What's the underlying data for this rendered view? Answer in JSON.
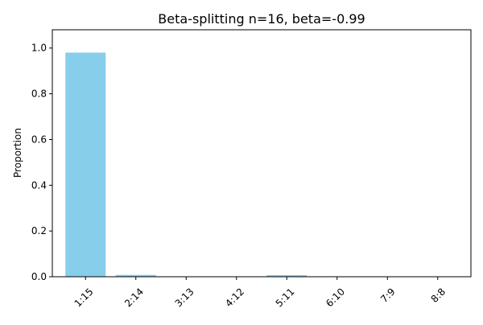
{
  "chart_data": {
    "type": "bar",
    "title": "Beta-splitting n=16, beta=-0.99",
    "xlabel": "",
    "ylabel": "Proportion",
    "categories": [
      "1:15",
      "2:14",
      "3:13",
      "4:12",
      "5:11",
      "6:10",
      "7:9",
      "8:8"
    ],
    "values": [
      0.98,
      0.008,
      0.001,
      0.001,
      0.007,
      0.001,
      0.001,
      0.0
    ],
    "ylim": [
      0,
      1.08
    ],
    "yticks": [
      0.0,
      0.2,
      0.4,
      0.6,
      0.8,
      1.0
    ],
    "ytick_labels": [
      "0.0",
      "0.2",
      "0.4",
      "0.6",
      "0.8",
      "1.0"
    ],
    "bar_color": "#87ceeb",
    "grid": false,
    "legend": "none"
  }
}
